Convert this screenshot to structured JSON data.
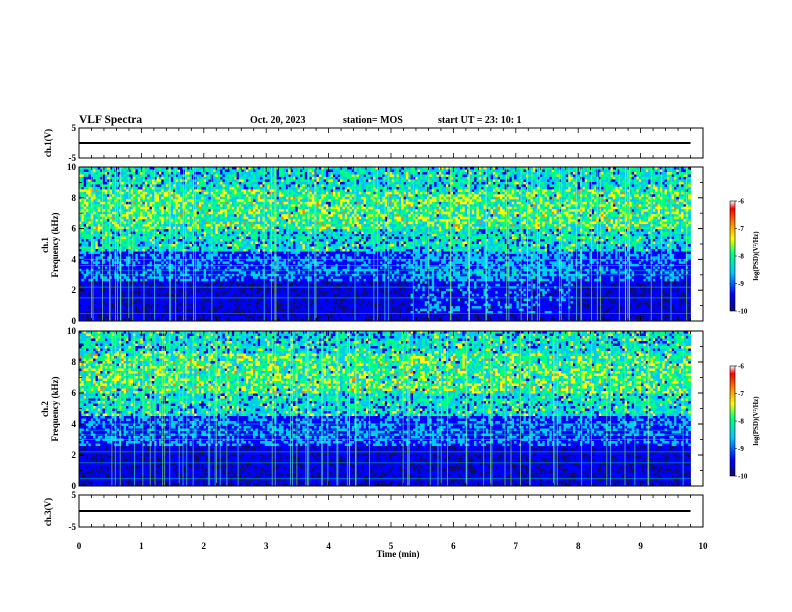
{
  "header": {
    "title": "VLF Spectra",
    "date": "Oct. 20, 2023",
    "station": "station= MOS",
    "start": "start  UT =   23: 10: 1"
  },
  "chart_data": [
    {
      "type": "line",
      "panel": "ch1-waveform",
      "ylabel": "ch.1(V)",
      "ylim": [
        -5,
        5
      ],
      "yticks": [
        "5",
        "-5"
      ],
      "xlim": [
        0,
        10
      ],
      "series": [
        {
          "x": [
            0,
            9.8
          ],
          "values": [
            0,
            0
          ],
          "color": "#000000"
        }
      ]
    },
    {
      "type": "heatmap",
      "panel": "ch1-spectrogram",
      "ylabel": "Frequency (kHz)",
      "ylabel_ch": "ch.1",
      "ylim": [
        0,
        10
      ],
      "yticks": [
        "0",
        "2",
        "4",
        "6",
        "8",
        "10"
      ],
      "xlim": [
        0,
        10
      ],
      "data_extent_min": 9.8,
      "colorbar": {
        "label": "log(PSD)(V²/Hz)",
        "range": [
          -10,
          -6
        ],
        "ticks": [
          "-6",
          "-7",
          "-8",
          "-9",
          "-10"
        ],
        "colors": [
          "#0d0d6e",
          "#0000ff",
          "#00c8ff",
          "#00ff80",
          "#ffff00",
          "#ff8000",
          "#ff0000",
          "#ffffff"
        ]
      }
    },
    {
      "type": "heatmap",
      "panel": "ch2-spectrogram",
      "ylabel": "Frequency (kHz)",
      "ylabel_ch": "ch.2",
      "ylim": [
        0,
        10
      ],
      "yticks": [
        "0",
        "2",
        "4",
        "6",
        "8",
        "10"
      ],
      "xlim": [
        0,
        10
      ],
      "data_extent_min": 9.8,
      "colorbar": {
        "label": "log(PSD)(V²/Hz)",
        "range": [
          -10,
          -6
        ],
        "ticks": [
          "-6",
          "-7",
          "-8",
          "-9",
          "-10"
        ],
        "colors": [
          "#0d0d6e",
          "#0000ff",
          "#00c8ff",
          "#00ff80",
          "#ffff00",
          "#ff8000",
          "#ff0000",
          "#ffffff"
        ]
      }
    },
    {
      "type": "line",
      "panel": "ch3-waveform",
      "ylabel": "ch.3(V)",
      "ylim": [
        -5,
        5
      ],
      "yticks": [
        "5",
        "-5"
      ],
      "xlim": [
        0,
        10
      ],
      "series": [
        {
          "x": [
            0,
            9.8
          ],
          "values": [
            0,
            0
          ],
          "color": "#000000"
        }
      ]
    }
  ],
  "xaxis": {
    "label": "Time (min)",
    "ticks": [
      "0",
      "1",
      "2",
      "3",
      "4",
      "5",
      "6",
      "7",
      "8",
      "9",
      "10"
    ]
  }
}
